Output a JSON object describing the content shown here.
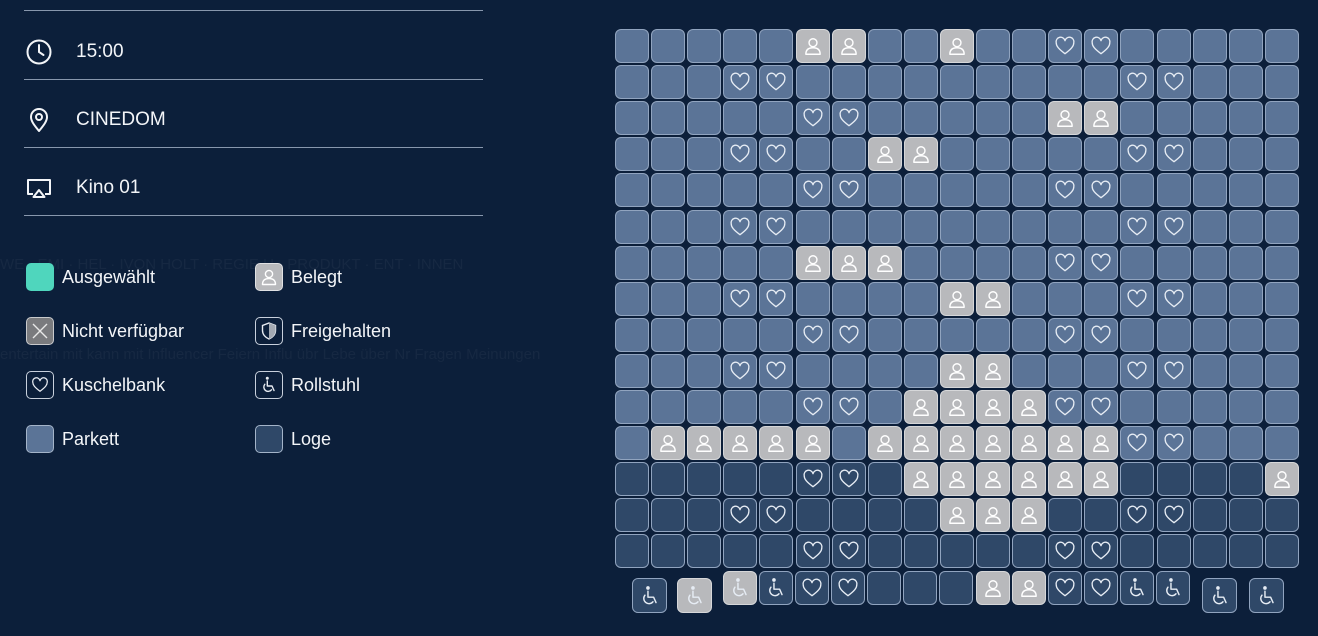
{
  "event": {
    "time": "15:00",
    "location": "CINEDOM",
    "hall": "Kino 01"
  },
  "legend": [
    {
      "id": "selected",
      "label": "Ausgewählt",
      "icon": "selected-swatch",
      "color": "#4fd6bd"
    },
    {
      "id": "occupied",
      "label": "Belegt",
      "icon": "person-icon",
      "color": "#b8b9bc"
    },
    {
      "id": "unavailable",
      "label": "Nicht verfügbar",
      "icon": "cross-icon",
      "color": "#7a7b7e"
    },
    {
      "id": "reserved",
      "label": "Freigehalten",
      "icon": "shield-icon",
      "color": "#0c1f3a"
    },
    {
      "id": "love-seat",
      "label": "Kuschelbank",
      "icon": "heart-icon",
      "color": "#0c1f3a"
    },
    {
      "id": "wheelchair",
      "label": "Rollstuhl",
      "icon": "wheelchair-icon",
      "color": "#0c1f3a"
    },
    {
      "id": "parkett",
      "label": "Parkett",
      "icon": "parkett-swatch",
      "color": "#5b7497"
    },
    {
      "id": "loge",
      "label": "Loge",
      "icon": "loge-swatch",
      "color": "#2f4868"
    }
  ],
  "seat_map": {
    "legend_codes": {
      "P": "parkett",
      "L": "loge",
      "H": "kuschelbank",
      "O": "belegt",
      "W": "rollstuhl",
      "WO": "rollstuhl-belegt"
    },
    "rows": [
      [
        "P",
        "P",
        "P",
        "P",
        "P",
        "O",
        "O",
        "P",
        "P",
        "O",
        "P",
        "P",
        "H",
        "H",
        "P",
        "P",
        "P",
        "P",
        "P"
      ],
      [
        "P",
        "P",
        "P",
        "H",
        "H",
        "P",
        "P",
        "P",
        "P",
        "P",
        "P",
        "P",
        "P",
        "P",
        "H",
        "H",
        "P",
        "P",
        "P"
      ],
      [
        "P",
        "P",
        "P",
        "P",
        "P",
        "H",
        "H",
        "P",
        "P",
        "P",
        "P",
        "P",
        "O",
        "O",
        "P",
        "P",
        "P",
        "P",
        "P"
      ],
      [
        "P",
        "P",
        "P",
        "H",
        "H",
        "P",
        "P",
        "O",
        "O",
        "P",
        "P",
        "P",
        "P",
        "P",
        "H",
        "H",
        "P",
        "P",
        "P"
      ],
      [
        "P",
        "P",
        "P",
        "P",
        "P",
        "H",
        "H",
        "P",
        "P",
        "P",
        "P",
        "P",
        "H",
        "H",
        "P",
        "P",
        "P",
        "P",
        "P"
      ],
      [
        "P",
        "P",
        "P",
        "H",
        "H",
        "P",
        "P",
        "P",
        "P",
        "P",
        "P",
        "P",
        "P",
        "P",
        "H",
        "H",
        "P",
        "P",
        "P"
      ],
      [
        "P",
        "P",
        "P",
        "P",
        "P",
        "O",
        "O",
        "O",
        "P",
        "P",
        "P",
        "P",
        "H",
        "H",
        "P",
        "P",
        "P",
        "P",
        "P"
      ],
      [
        "P",
        "P",
        "P",
        "H",
        "H",
        "P",
        "P",
        "P",
        "P",
        "O",
        "O",
        "P",
        "P",
        "P",
        "H",
        "H",
        "P",
        "P",
        "P"
      ],
      [
        "P",
        "P",
        "P",
        "P",
        "P",
        "H",
        "H",
        "P",
        "P",
        "P",
        "P",
        "P",
        "H",
        "H",
        "P",
        "P",
        "P",
        "P",
        "P"
      ],
      [
        "P",
        "P",
        "P",
        "H",
        "H",
        "P",
        "P",
        "P",
        "P",
        "O",
        "O",
        "P",
        "P",
        "P",
        "H",
        "H",
        "P",
        "P",
        "P"
      ],
      [
        "P",
        "P",
        "P",
        "P",
        "P",
        "H",
        "H",
        "P",
        "O",
        "O",
        "O",
        "O",
        "H",
        "H",
        "P",
        "P",
        "P",
        "P",
        "P"
      ],
      [
        "P",
        "O",
        "O",
        "O",
        "O",
        "O",
        "P",
        "O",
        "O",
        "O",
        "O",
        "O",
        "O",
        "O",
        "H",
        "H",
        "P",
        "P",
        "P"
      ],
      [
        "L",
        "L",
        "L",
        "L",
        "L",
        "H",
        "H",
        "L",
        "O",
        "O",
        "O",
        "O",
        "O",
        "O",
        "L",
        "L",
        "L",
        "L",
        "O"
      ],
      [
        "L",
        "L",
        "L",
        "H",
        "H",
        "L",
        "L",
        "L",
        "L",
        "O",
        "O",
        "O",
        "L",
        "L",
        "H",
        "H",
        "L",
        "L",
        "L"
      ],
      [
        "L",
        "L",
        "L",
        "L",
        "L",
        "H",
        "H",
        "L",
        "L",
        "L",
        "L",
        "L",
        "H",
        "H",
        "L",
        "L",
        "L",
        "L",
        "L"
      ]
    ],
    "front_row": [
      "W",
      "WO",
      "WO",
      "W",
      "H",
      "H",
      "L",
      "L",
      "L",
      "O",
      "O",
      "H",
      "H",
      "W",
      "W",
      "W",
      "W"
    ]
  }
}
